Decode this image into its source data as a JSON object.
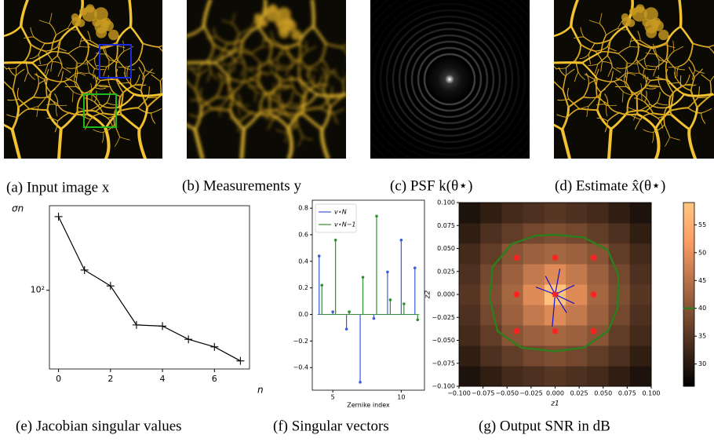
{
  "captions": [
    "(a) Input image x",
    "(b) Measurements y",
    "(c) PSF k(θ⋆)",
    "(d) Estimate x̂(θ⋆)",
    "(e) Jacobian singular values",
    "(f)  Singular vectors",
    "(g) Output SNR in dB"
  ],
  "chart_data": [
    {
      "type": "line",
      "xlabel": "n",
      "ylabel": "σn",
      "color": "#000000",
      "x": [
        0,
        1,
        2,
        3,
        4,
        5,
        6,
        7
      ],
      "values": [
        267,
        131,
        106,
        63,
        62,
        52,
        47,
        39
      ],
      "xlim": [
        -0.35,
        7.35
      ],
      "ylim": [
        35,
        309
      ],
      "ylog": true,
      "xticks": [
        0,
        2,
        4,
        6
      ],
      "yticks": [
        {
          "value": 100,
          "label": "10²"
        }
      ]
    },
    {
      "type": "stem",
      "xlabel": "Zernike index",
      "legend": "upper left",
      "series": [
        {
          "name": "v⋆N",
          "color": "#3b5bdb",
          "x": [
            4,
            5,
            6,
            7,
            8,
            9,
            10,
            11
          ],
          "values": [
            0.44,
            0.02,
            -0.11,
            -0.51,
            -0.03,
            0.32,
            0.56,
            0.35
          ]
        },
        {
          "name": "v⋆N−1",
          "color": "#2f8f2f",
          "x": [
            4.2,
            5.2,
            6.2,
            7.2,
            8.2,
            9.2,
            10.2,
            11.2
          ],
          "values": [
            0.22,
            0.56,
            0.02,
            0.28,
            0.74,
            0.11,
            0.08,
            -0.04
          ]
        }
      ],
      "xlim": [
        3.5,
        11.7
      ],
      "ylim": [
        -0.57,
        0.86
      ],
      "xticks": [
        5,
        10
      ],
      "yticks": [
        {
          "value": -0.4,
          "label": "−0.4"
        },
        {
          "value": -0.2,
          "label": "−0.2"
        },
        {
          "value": 0,
          "label": "0.0"
        },
        {
          "value": 0.2,
          "label": "0.2"
        },
        {
          "value": 0.4,
          "label": "0.4"
        },
        {
          "value": 0.6,
          "label": "0.6"
        },
        {
          "value": 0.8,
          "label": "0.8"
        }
      ]
    },
    {
      "type": "heatmap",
      "xlabel": "z1",
      "ylabel": "z2",
      "colormap": "copper",
      "x": [
        -0.0889,
        -0.0667,
        -0.0444,
        -0.0222,
        0,
        0.0222,
        0.0444,
        0.0667,
        0.0889
      ],
      "y": [
        -0.0889,
        -0.0667,
        -0.0444,
        -0.0222,
        0,
        0.0222,
        0.0444,
        0.0667,
        0.0889
      ],
      "z": [
        [
          29,
          31,
          33,
          34,
          35,
          34,
          33,
          31,
          29
        ],
        [
          31,
          34,
          36,
          38,
          39,
          38,
          36,
          34,
          31
        ],
        [
          33,
          36,
          40,
          42,
          43,
          42,
          40,
          36,
          33
        ],
        [
          34,
          38,
          42,
          46,
          49,
          46,
          42,
          38,
          34
        ],
        [
          35,
          39,
          43,
          49,
          58,
          49,
          43,
          39,
          35
        ],
        [
          34,
          38,
          42,
          46,
          49,
          46,
          42,
          38,
          34
        ],
        [
          33,
          36,
          40,
          42,
          43,
          42,
          40,
          36,
          33
        ],
        [
          31,
          34,
          36,
          38,
          39,
          38,
          36,
          34,
          31
        ],
        [
          29,
          31,
          33,
          34,
          35,
          34,
          33,
          31,
          29
        ]
      ],
      "clim": [
        26,
        59
      ],
      "contour": {
        "level": 40,
        "color": "#2e7d1e",
        "x": [
          0,
          0.03,
          0.055,
          0.066,
          0.065,
          0.055,
          0.03,
          0,
          -0.035,
          -0.06,
          -0.068,
          -0.065,
          -0.045,
          -0.02,
          0
        ],
        "y": [
          0.065,
          0.062,
          0.048,
          0.02,
          -0.015,
          -0.04,
          -0.058,
          -0.062,
          -0.058,
          -0.04,
          -0.005,
          0.03,
          0.055,
          0.064,
          0.065
        ]
      },
      "stars": {
        "color": "#ff2020",
        "x": [
          -0.04,
          0,
          0.04,
          -0.04,
          0,
          0.04,
          -0.04,
          0,
          0.04
        ],
        "y": [
          0.04,
          0.04,
          0.04,
          0,
          0,
          0,
          -0.04,
          -0.04,
          -0.04
        ]
      },
      "vectors": {
        "color": "#1010d0",
        "x": [
          0.02,
          0.02,
          -0.02,
          0.005,
          -0.003,
          0.012,
          -0.01
        ],
        "y": [
          0.01,
          -0.01,
          0.008,
          0.028,
          -0.035,
          -0.02,
          0.02
        ]
      },
      "xlim": [
        -0.1,
        0.1
      ],
      "ylim": [
        -0.1,
        0.1
      ],
      "xticks": [
        {
          "value": -0.1,
          "label": "−0.100"
        },
        {
          "value": -0.075,
          "label": "−0.075"
        },
        {
          "value": -0.05,
          "label": "−0.050"
        },
        {
          "value": -0.025,
          "label": "−0.025"
        },
        {
          "value": 0,
          "label": "0.000"
        },
        {
          "value": 0.025,
          "label": "0.025"
        },
        {
          "value": 0.05,
          "label": "0.050"
        },
        {
          "value": 0.075,
          "label": "0.075"
        },
        {
          "value": 0.1,
          "label": "0.100"
        }
      ],
      "yticks": [
        {
          "value": -0.1,
          "label": "−0.100"
        },
        {
          "value": -0.075,
          "label": "−0.075"
        },
        {
          "value": -0.05,
          "label": "−0.050"
        },
        {
          "value": -0.025,
          "label": "−0.025"
        },
        {
          "value": 0,
          "label": "0.000"
        },
        {
          "value": 0.025,
          "label": "0.025"
        },
        {
          "value": 0.05,
          "label": "0.050"
        },
        {
          "value": 0.075,
          "label": "0.075"
        },
        {
          "value": 0.1,
          "label": "0.100"
        }
      ],
      "cticks": [
        30,
        35,
        40,
        45,
        50,
        55
      ]
    }
  ]
}
